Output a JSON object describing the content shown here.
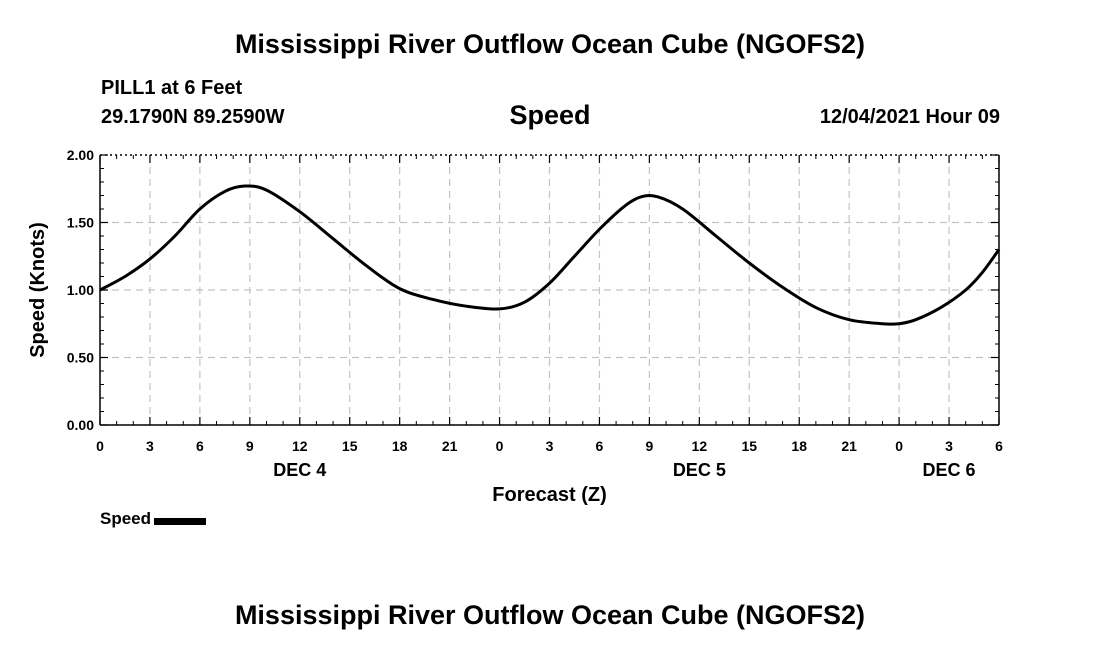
{
  "header": {
    "title": "Mississippi River Outflow Ocean Cube (NGOFS2)",
    "station": "PILL1 at 6 Feet",
    "coordinates": "29.1790N  89.2590W",
    "datetime": "12/04/2021 Hour 09"
  },
  "footer": {
    "title": "Mississippi River Outflow Ocean Cube (NGOFS2)"
  },
  "legend": {
    "label": "Speed",
    "color": "#000000"
  },
  "chart_data": {
    "type": "line",
    "title": "Speed",
    "xlabel": "Forecast (Z)",
    "ylabel": "Speed (Knots)",
    "xlim": [
      0,
      54
    ],
    "ylim": [
      0,
      2
    ],
    "yticks": [
      0,
      0.5,
      1,
      1.5,
      2
    ],
    "ytick_labels": [
      "0.00",
      "0.50",
      "1.00",
      "1.50",
      "2.00"
    ],
    "xticks": [
      0,
      3,
      6,
      9,
      12,
      15,
      18,
      21,
      24,
      27,
      30,
      33,
      36,
      39,
      42,
      45,
      48,
      51,
      54
    ],
    "xtick_labels": [
      "0",
      "3",
      "6",
      "9",
      "12",
      "15",
      "18",
      "21",
      "0",
      "3",
      "6",
      "9",
      "12",
      "15",
      "18",
      "21",
      "0",
      "3",
      "6"
    ],
    "day_labels": [
      {
        "x": 12,
        "label": "DEC 4"
      },
      {
        "x": 36,
        "label": "DEC 5"
      },
      {
        "x": 51,
        "label": "DEC 6"
      }
    ],
    "grid": true,
    "line_color": "#000000",
    "series": [
      {
        "name": "Speed",
        "x": [
          0,
          1.5,
          3,
          4.5,
          6,
          7.5,
          8.7,
          10,
          12,
          14,
          16,
          18,
          20,
          22,
          24,
          25.5,
          27,
          28.5,
          30,
          31.5,
          32.5,
          33.5,
          35,
          37,
          39,
          41,
          43,
          45,
          47,
          48,
          49,
          50.5,
          52,
          53,
          54
        ],
        "y": [
          1.0,
          1.1,
          1.23,
          1.4,
          1.6,
          1.73,
          1.77,
          1.74,
          1.58,
          1.38,
          1.18,
          1.01,
          0.93,
          0.88,
          0.86,
          0.91,
          1.05,
          1.25,
          1.45,
          1.62,
          1.69,
          1.69,
          1.6,
          1.4,
          1.2,
          1.02,
          0.87,
          0.78,
          0.75,
          0.75,
          0.78,
          0.87,
          1.0,
          1.13,
          1.3
        ]
      }
    ]
  }
}
